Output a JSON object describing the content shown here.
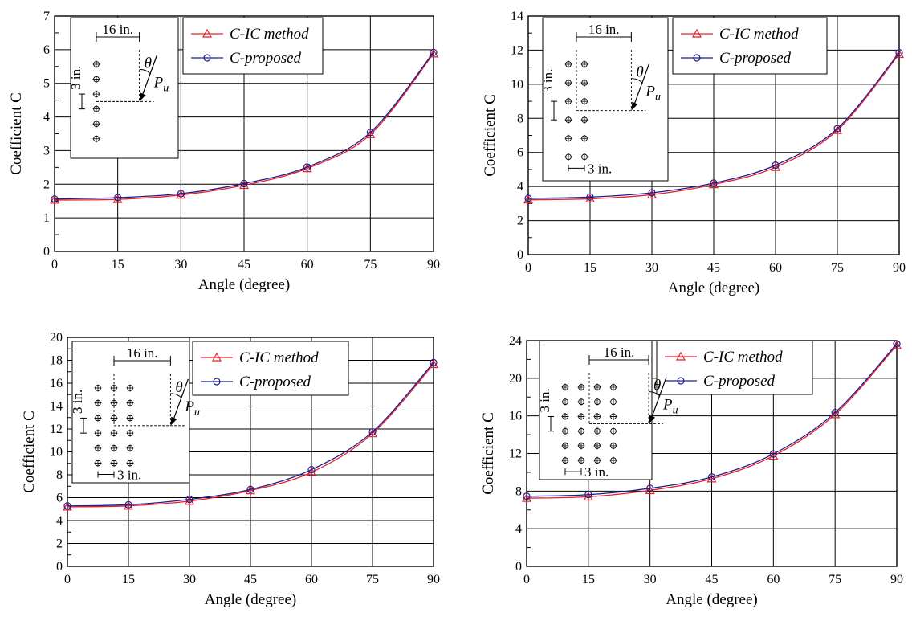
{
  "colors": {
    "c_ic": "#e8202a",
    "c_proposed": "#1d1e8c",
    "grid": "#000000"
  },
  "chart_data": [
    {
      "type": "line",
      "xlabel": "Angle (degree)",
      "ylabel": "Coefficient C",
      "xlim": [
        0,
        90
      ],
      "ylim": [
        0,
        7
      ],
      "xticks": [
        0,
        15,
        30,
        45,
        60,
        75,
        90
      ],
      "yticks": [
        0,
        1,
        2,
        3,
        4,
        5,
        6,
        7
      ],
      "grid": true,
      "legend_position": "top-center",
      "series": [
        {
          "name": "C-IC method",
          "marker": "triangle",
          "x": [
            0,
            15,
            30,
            45,
            60,
            75,
            90
          ],
          "values": [
            1.53,
            1.55,
            1.68,
            1.97,
            2.47,
            3.48,
            5.88
          ]
        },
        {
          "name": "C-proposed",
          "marker": "circle",
          "x": [
            0,
            15,
            30,
            45,
            60,
            75,
            90
          ],
          "values": [
            1.56,
            1.6,
            1.72,
            2.02,
            2.51,
            3.54,
            5.92
          ]
        }
      ],
      "inset": {
        "spacing_label": "16 in.",
        "pitch_label": "3 in.",
        "column_label": "",
        "angle_symbol": "θ",
        "load_symbol": "P",
        "load_subscript": "u",
        "columns": 1,
        "rows": 6
      }
    },
    {
      "type": "line",
      "xlabel": "Angle (degree)",
      "ylabel": "Coefficient C",
      "xlim": [
        0,
        90
      ],
      "ylim": [
        0,
        14
      ],
      "xticks": [
        0,
        15,
        30,
        45,
        60,
        75,
        90
      ],
      "yticks": [
        0,
        2,
        4,
        6,
        8,
        10,
        12,
        14
      ],
      "grid": true,
      "legend_position": "top-center",
      "series": [
        {
          "name": "C-IC method",
          "marker": "triangle",
          "x": [
            0,
            15,
            30,
            45,
            60,
            75,
            90
          ],
          "values": [
            3.22,
            3.28,
            3.52,
            4.12,
            5.13,
            7.3,
            11.76
          ]
        },
        {
          "name": "C-proposed",
          "marker": "circle",
          "x": [
            0,
            15,
            30,
            45,
            60,
            75,
            90
          ],
          "values": [
            3.3,
            3.38,
            3.63,
            4.2,
            5.25,
            7.4,
            11.85
          ]
        }
      ],
      "inset": {
        "spacing_label": "16 in.",
        "pitch_label": "3 in.",
        "column_label": "3 in.",
        "angle_symbol": "θ",
        "load_symbol": "P",
        "load_subscript": "u",
        "columns": 2,
        "rows": 6
      }
    },
    {
      "type": "line",
      "xlabel": "Angle (degree)",
      "ylabel": "Coefficient C",
      "xlim": [
        0,
        90
      ],
      "ylim": [
        0,
        20
      ],
      "xticks": [
        0,
        15,
        30,
        45,
        60,
        75,
        90
      ],
      "yticks": [
        0,
        2,
        4,
        6,
        8,
        10,
        12,
        14,
        16,
        18,
        20
      ],
      "grid": true,
      "legend_position": "top-center",
      "series": [
        {
          "name": "C-IC method",
          "marker": "triangle",
          "x": [
            0,
            15,
            30,
            45,
            60,
            75,
            90
          ],
          "values": [
            5.2,
            5.28,
            5.7,
            6.62,
            8.22,
            11.6,
            17.65
          ]
        },
        {
          "name": "C-proposed",
          "marker": "circle",
          "x": [
            0,
            15,
            30,
            45,
            60,
            75,
            90
          ],
          "values": [
            5.28,
            5.38,
            5.85,
            6.72,
            8.45,
            11.75,
            17.8
          ]
        }
      ],
      "inset": {
        "spacing_label": "16 in.",
        "pitch_label": "3 in.",
        "column_label": "3 in.",
        "angle_symbol": "θ",
        "load_symbol": "P",
        "load_subscript": "u",
        "columns": 3,
        "rows": 6
      }
    },
    {
      "type": "line",
      "xlabel": "Angle (degree)",
      "ylabel": "Coefficient C",
      "xlim": [
        0,
        90
      ],
      "ylim": [
        0,
        24
      ],
      "xticks": [
        0,
        15,
        30,
        45,
        60,
        75,
        90
      ],
      "yticks": [
        0,
        4,
        8,
        12,
        16,
        20,
        24
      ],
      "grid": true,
      "legend_position": "top-center",
      "series": [
        {
          "name": "C-IC method",
          "marker": "triangle",
          "x": [
            0,
            15,
            30,
            45,
            60,
            75,
            90
          ],
          "values": [
            7.25,
            7.4,
            8.08,
            9.32,
            11.75,
            16.15,
            23.5
          ]
        },
        {
          "name": "C-proposed",
          "marker": "circle",
          "x": [
            0,
            15,
            30,
            45,
            60,
            75,
            90
          ],
          "values": [
            7.45,
            7.62,
            8.3,
            9.5,
            11.95,
            16.35,
            23.65
          ]
        }
      ],
      "inset": {
        "spacing_label": "16 in.",
        "pitch_label": "3 in.",
        "column_label": "3 in.",
        "angle_symbol": "θ",
        "load_symbol": "P",
        "load_subscript": "u",
        "columns": 4,
        "rows": 6
      }
    }
  ]
}
